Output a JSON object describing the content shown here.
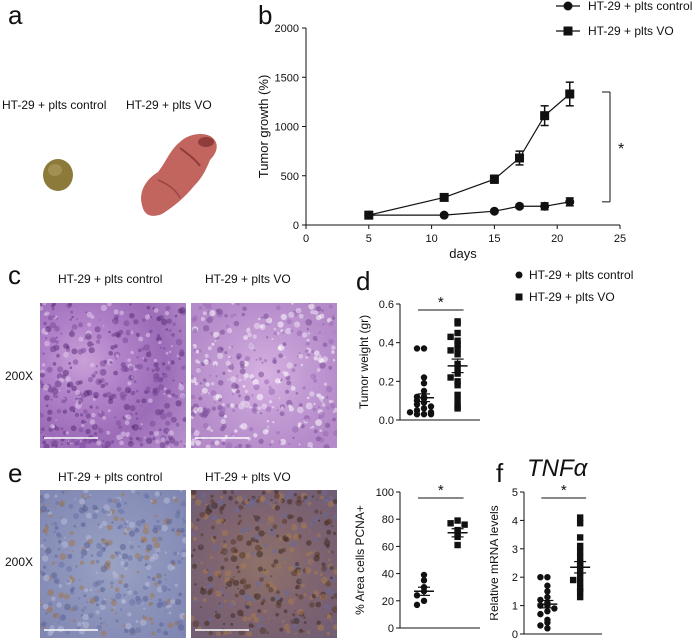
{
  "panels": {
    "a": {
      "letter": "a",
      "label_control": "HT-29 + plts control",
      "label_vo": "HT-29 + plts VO"
    },
    "b": {
      "letter": "b",
      "significance": "*"
    },
    "c": {
      "letter": "c",
      "label_control": "HT-29 + plts control",
      "label_vo": "HT-29 + plts VO",
      "magnification": "200X"
    },
    "d": {
      "letter": "d",
      "legend_control": "HT-29 + plts control",
      "legend_vo": "HT-29 + plts VO",
      "significance": "*"
    },
    "e": {
      "letter": "e",
      "label_control": "HT-29 + plts control",
      "label_vo": "HT-29 + plts VO",
      "magnification": "200X",
      "significance": "*"
    },
    "f": {
      "letter": "f",
      "title": "TNFα",
      "significance": "*"
    }
  },
  "chart_data": [
    {
      "id": "b",
      "type": "line",
      "xlabel": "days",
      "ylabel": "Tumor growth (%)",
      "xlim": [
        0,
        25
      ],
      "ylim": [
        0,
        2000
      ],
      "xticks": [
        0,
        5,
        10,
        15,
        20,
        25
      ],
      "yticks": [
        0,
        500,
        1000,
        1500,
        2000
      ],
      "legend": "top-right",
      "series": [
        {
          "name": "HT-29 + plts control",
          "marker": "circle",
          "x": [
            5,
            11,
            15,
            17,
            19,
            21
          ],
          "y": [
            100,
            100,
            140,
            190,
            190,
            235
          ],
          "err": [
            10,
            12,
            15,
            20,
            35,
            40
          ]
        },
        {
          "name": "HT-29 + plts VO",
          "marker": "square",
          "x": [
            5,
            11,
            15,
            17,
            19,
            21
          ],
          "y": [
            100,
            280,
            465,
            680,
            1110,
            1330
          ],
          "err": [
            10,
            20,
            40,
            70,
            100,
            120
          ]
        }
      ]
    },
    {
      "id": "d",
      "type": "scatter",
      "ylabel": "Tumor weight (gr)",
      "ylim": [
        0,
        0.6
      ],
      "yticks": [
        0.0,
        0.2,
        0.4,
        0.6
      ],
      "groups": [
        {
          "name": "HT-29 + plts control",
          "marker": "circle",
          "mean": 0.115,
          "sem": 0.02,
          "values": [
            0.37,
            0.37,
            0.22,
            0.19,
            0.15,
            0.12,
            0.12,
            0.11,
            0.1,
            0.09,
            0.08,
            0.07,
            0.06,
            0.05,
            0.04,
            0.04,
            0.03,
            0.03,
            0.03
          ]
        },
        {
          "name": "HT-29 + plts VO",
          "marker": "square",
          "mean": 0.28,
          "sem": 0.035,
          "values": [
            0.51,
            0.5,
            0.45,
            0.43,
            0.41,
            0.39,
            0.37,
            0.36,
            0.34,
            0.29,
            0.27,
            0.24,
            0.22,
            0.2,
            0.18,
            0.13,
            0.1,
            0.07,
            0.06
          ]
        }
      ]
    },
    {
      "id": "e",
      "type": "scatter",
      "ylabel": "% Area cells PCNA+",
      "ylim": [
        0,
        100
      ],
      "yticks": [
        0,
        20,
        40,
        60,
        80,
        100
      ],
      "groups": [
        {
          "name": "HT-29 + plts control",
          "marker": "circle",
          "mean": 27,
          "sem": 3,
          "values": [
            39,
            35,
            30,
            27,
            24,
            20,
            17
          ]
        },
        {
          "name": "HT-29 + plts VO",
          "marker": "square",
          "mean": 70,
          "sem": 3,
          "values": [
            79,
            77,
            76,
            72,
            70,
            67,
            61
          ]
        }
      ]
    },
    {
      "id": "f",
      "type": "scatter",
      "ylabel": "Relative mRNA levels",
      "ylim": [
        0,
        5
      ],
      "yticks": [
        0,
        1,
        2,
        3,
        4,
        5
      ],
      "groups": [
        {
          "name": "HT-29 + plts control",
          "marker": "circle",
          "mean": 1.05,
          "sem": 0.13,
          "values": [
            2.0,
            2.0,
            1.7,
            1.5,
            1.3,
            1.2,
            1.1,
            1.0,
            1.0,
            0.9,
            0.8,
            0.7,
            0.5,
            0.4,
            0.3,
            0.2
          ]
        },
        {
          "name": "HT-29 + plts VO",
          "marker": "square",
          "mean": 2.35,
          "sem": 0.2,
          "values": [
            4.1,
            3.9,
            3.4,
            3.1,
            2.9,
            2.7,
            2.5,
            2.4,
            2.2,
            2.0,
            1.9,
            1.8,
            1.6,
            1.5,
            1.3
          ]
        }
      ]
    }
  ]
}
